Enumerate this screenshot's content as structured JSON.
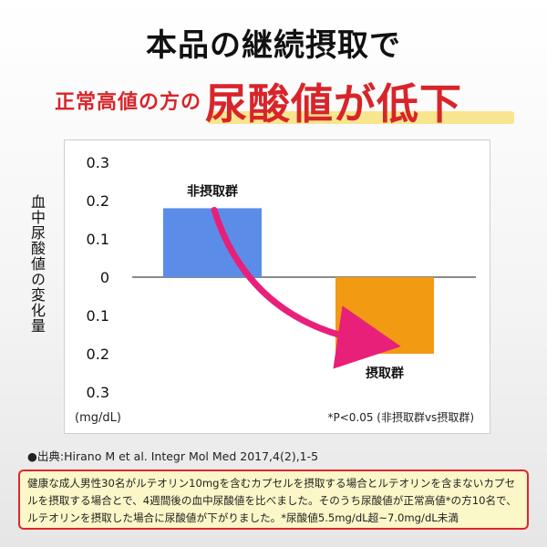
{
  "headline": {
    "line1": "本品の継続摂取で",
    "line2_prefix": "正常高値の方の",
    "line2_emphasis": "尿酸値が低下"
  },
  "chart_data": {
    "type": "bar",
    "categories": [
      "非摂取群",
      "摂取群"
    ],
    "values": [
      0.18,
      -0.2
    ],
    "colors": [
      "#5b8de8",
      "#f29a12"
    ],
    "ylim": [
      -0.3,
      0.3
    ],
    "yticks": [
      0.3,
      0.2,
      0.1,
      0,
      -0.1,
      -0.2,
      -0.3
    ],
    "ytick_labels": [
      "0.3",
      "0.2",
      "0.1",
      "0",
      "0.1",
      "0.2",
      "0.3"
    ],
    "ylabel": "血中尿酸値の変化量",
    "unit": "(mg/dL)",
    "annotation": "*P<0.05 (非摂取群vs摂取群)",
    "arrow_color": "#e8207a"
  },
  "source": "●出典:Hirano M et al. Integr Mol Med 2017,4(2),1-5",
  "note": "健康な成人男性30名がルテオリン10mgを含むカプセルを摂取する場合とルテオリンを含まないカプセルを摂取する場合とで、4週間後の血中尿酸値を比べました。そのうち尿酸値が正常高値*の方10名で、ルテオリンを摂取した場合に尿酸値が下がりました。*尿酸値5.5mg/dL超~7.0mg/dL未満"
}
